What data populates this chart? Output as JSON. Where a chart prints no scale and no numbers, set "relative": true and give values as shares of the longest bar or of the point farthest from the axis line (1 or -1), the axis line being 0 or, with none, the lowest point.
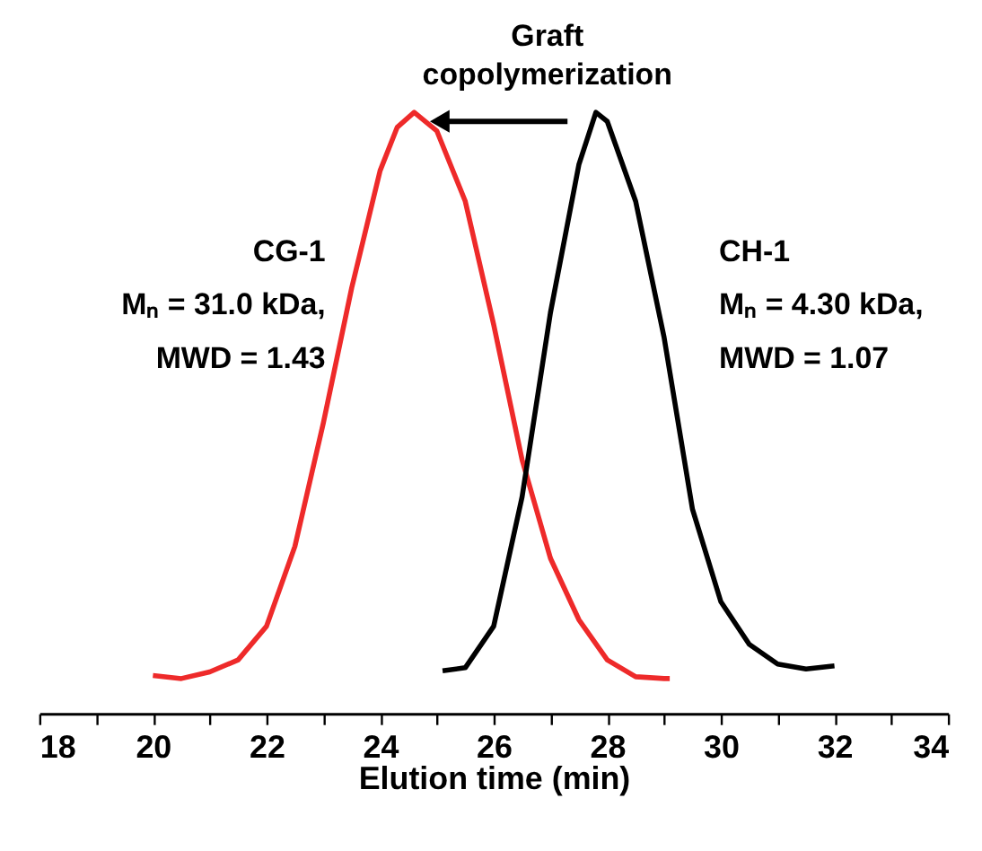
{
  "chart_data": {
    "type": "line",
    "title": "Graft copolymerization",
    "xlabel": "Elution time (min)",
    "relative": true,
    "grid": false,
    "legend": false,
    "marker": "none",
    "line_style": "solid",
    "xlim": [
      18,
      34
    ],
    "xticks": [
      18,
      {
        "value": 19,
        "label": null
      },
      20,
      {
        "value": 21,
        "label": null
      },
      22,
      {
        "value": 23,
        "label": null
      },
      24,
      {
        "value": 25,
        "label": null
      },
      26,
      {
        "value": 27,
        "label": null
      },
      28,
      {
        "value": 29,
        "label": null
      },
      30,
      {
        "value": 31,
        "label": null
      },
      32,
      {
        "value": 33,
        "label": null
      },
      34
    ],
    "tick_labels": "x",
    "annotations": [
      "Mₙ = 31.0 kDa,",
      "MWD = 1.43",
      "Mₙ = 4.30 kDa,",
      "MWD = 1.07"
    ],
    "series": [
      {
        "name": "CG-1",
        "color": "#ee2a2a",
        "x": [
          20,
          20.5,
          21,
          21.5,
          22,
          22.5,
          23,
          23.5,
          24,
          24.3,
          24.6,
          25,
          25.5,
          26,
          26.5,
          27,
          27.5,
          28,
          28.5,
          29,
          29.1
        ],
        "values": [
          0.063,
          0.058,
          0.069,
          0.089,
          0.145,
          0.278,
          0.483,
          0.708,
          0.903,
          0.975,
          1.0,
          0.969,
          0.852,
          0.647,
          0.422,
          0.258,
          0.156,
          0.089,
          0.061,
          0.058,
          0.058
        ]
      },
      {
        "name": "CH-1",
        "color": "#000000",
        "x": [
          25.1,
          25.5,
          26,
          26.5,
          27,
          27.5,
          27.8,
          28,
          28.5,
          29,
          29.5,
          30,
          30.5,
          31,
          31.5,
          32
        ],
        "values": [
          0.071,
          0.076,
          0.145,
          0.36,
          0.667,
          0.913,
          1.0,
          0.985,
          0.852,
          0.626,
          0.34,
          0.186,
          0.115,
          0.082,
          0.074,
          0.079
        ]
      }
    ]
  }
}
